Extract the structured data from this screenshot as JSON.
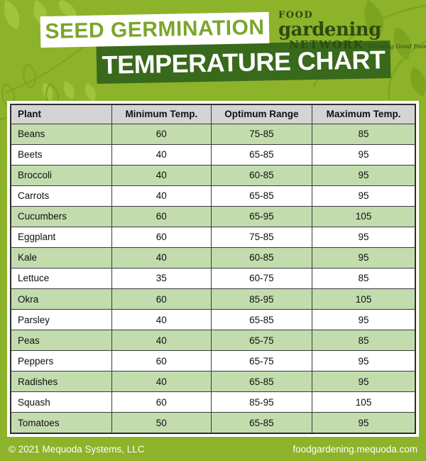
{
  "header": {
    "banner_top": "SEED GERMINATION",
    "banner_bottom": "TEMPERATURE CHART",
    "logo": {
      "word1": "FOOD",
      "word2": "gardening",
      "word3": "NETWORK",
      "tagline": "Growing Good Food at Home"
    }
  },
  "chart_data": {
    "type": "table",
    "title": "Seed Germination Temperature Chart",
    "columns": [
      "Plant",
      "Minimum Temp.",
      "Optimum Range",
      "Maximum Temp."
    ],
    "rows": [
      [
        "Beans",
        "60",
        "75-85",
        "85"
      ],
      [
        "Beets",
        "40",
        "65-85",
        "95"
      ],
      [
        "Broccoli",
        "40",
        "60-85",
        "95"
      ],
      [
        "Carrots",
        "40",
        "65-85",
        "95"
      ],
      [
        "Cucumbers",
        "60",
        "65-95",
        "105"
      ],
      [
        "Eggplant",
        "60",
        "75-85",
        "95"
      ],
      [
        "Kale",
        "40",
        "60-85",
        "95"
      ],
      [
        "Lettuce",
        "35",
        "60-75",
        "85"
      ],
      [
        "Okra",
        "60",
        "85-95",
        "105"
      ],
      [
        "Parsley",
        "40",
        "65-85",
        "95"
      ],
      [
        "Peas",
        "40",
        "65-75",
        "85"
      ],
      [
        "Peppers",
        "60",
        "65-75",
        "95"
      ],
      [
        "Radishes",
        "40",
        "65-85",
        "95"
      ],
      [
        "Squash",
        "60",
        "85-95",
        "105"
      ],
      [
        "Tomatoes",
        "50",
        "65-85",
        "95"
      ]
    ]
  },
  "footer": {
    "copyright": "© 2021 Mequoda Systems, LLC",
    "website": "foodgardening.mequoda.com"
  },
  "colors": {
    "background": "#8CB32A",
    "banner_dark_green": "#39691B",
    "title_green": "#7CA52B",
    "logo_green": "#2D4A10",
    "row_green": "#C3DCAE",
    "header_gray": "#D4D4D4",
    "table_border": "#2E2E2E",
    "footer_text": "#FFFFFF"
  }
}
